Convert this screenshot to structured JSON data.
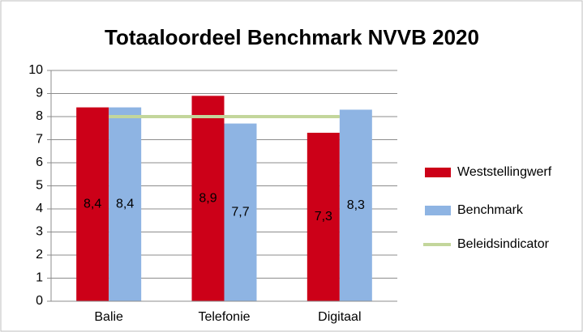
{
  "chart_data": {
    "type": "bar",
    "title": "Totaaloordeel Benchmark NVVB 2020",
    "categories": [
      "Balie",
      "Telefonie",
      "Digitaal"
    ],
    "series": [
      {
        "name": "Weststellingwerf",
        "color": "#cc0018",
        "values": [
          8.4,
          8.9,
          7.3
        ],
        "value_labels": [
          "8,4",
          "8,9",
          "7,3"
        ]
      },
      {
        "name": "Benchmark",
        "color": "#8eb4e3",
        "values": [
          8.4,
          7.7,
          8.3
        ],
        "value_labels": [
          "8,4",
          "7,7",
          "8,3"
        ]
      },
      {
        "name": "Beleidsindicator",
        "color": "#c3d69b",
        "type": "line",
        "values": [
          8,
          8,
          8
        ]
      }
    ],
    "ylim": [
      0,
      10
    ],
    "yticks": [
      0,
      1,
      2,
      3,
      4,
      5,
      6,
      7,
      8,
      9,
      10
    ],
    "grid": true,
    "legend": "right"
  }
}
